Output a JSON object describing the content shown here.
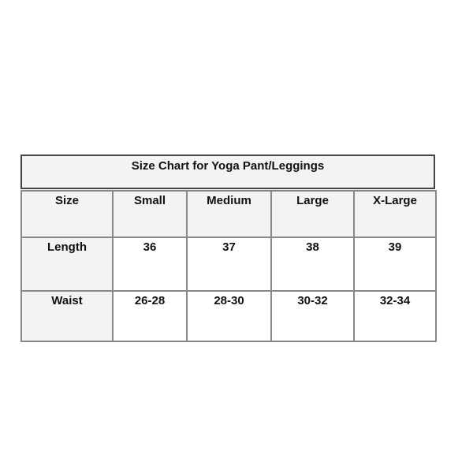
{
  "title": "Size Chart for Yoga Pant/Leggings",
  "headers": [
    "Size",
    "Small",
    "Medium",
    "Large",
    "X-Large"
  ],
  "rows": [
    {
      "label": "Length",
      "values": [
        "36",
        "37",
        "38",
        "39"
      ]
    },
    {
      "label": "Waist",
      "values": [
        "26-28",
        "28-30",
        "30-32",
        "32-34"
      ]
    }
  ]
}
